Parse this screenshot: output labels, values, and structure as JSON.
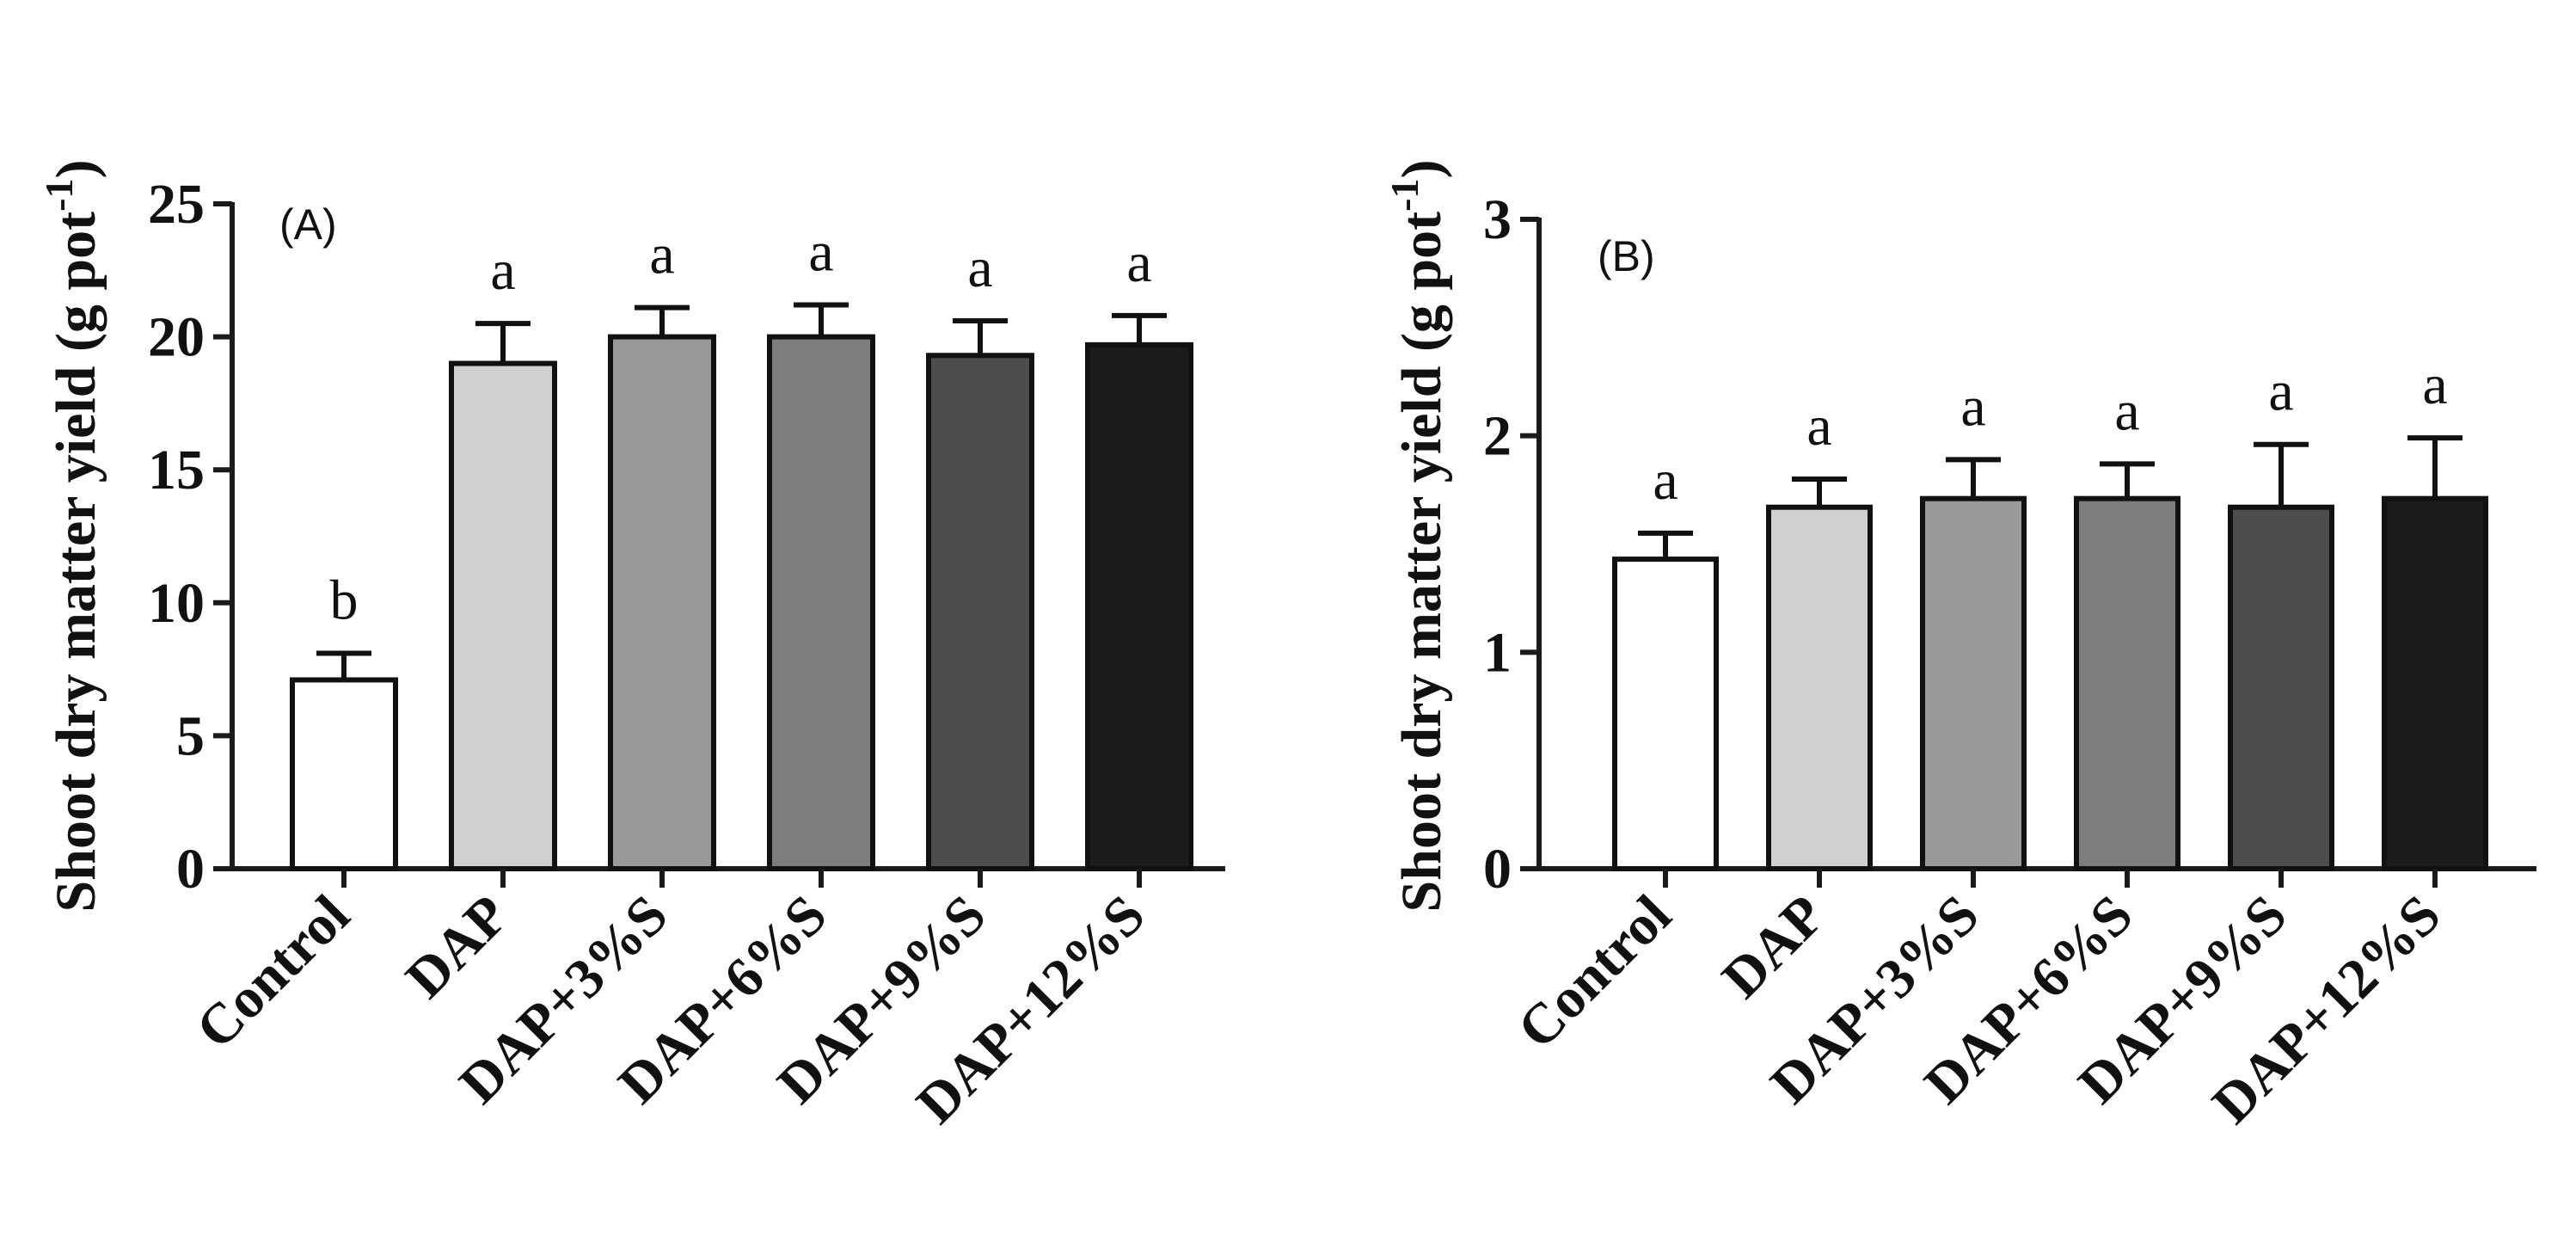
{
  "chart_data": [
    {
      "type": "bar",
      "panel_label": "(A)",
      "ylabel": "Shoot dry matter yield (g pot",
      "ylabel_sup": "-1",
      "ylabel_close": ")",
      "xlabel": "",
      "ylim": [
        0,
        25
      ],
      "yticks": [
        0,
        5,
        10,
        15,
        20,
        25
      ],
      "categories": [
        "Control",
        "DAP",
        "DAP+3%S",
        "DAP+6%S",
        "DAP+9%S",
        "DAP+12%S"
      ],
      "values": [
        7.1,
        19.0,
        20.0,
        20.0,
        19.3,
        19.7
      ],
      "errors": [
        1.0,
        1.5,
        1.1,
        1.2,
        1.3,
        1.1
      ],
      "significance": [
        "b",
        "a",
        "a",
        "a",
        "a",
        "a"
      ],
      "colors": [
        "#ffffff",
        "#d0d0d0",
        "#999999",
        "#7d7d7d",
        "#4d4d4d",
        "#1c1c1c"
      ]
    },
    {
      "type": "bar",
      "panel_label": "(B)",
      "ylabel": "Shoot dry matter yield (g pot",
      "ylabel_sup": "-1",
      "ylabel_close": ")",
      "xlabel": "",
      "ylim": [
        0,
        3
      ],
      "yticks": [
        0,
        1,
        2,
        3
      ],
      "categories": [
        "Control",
        "DAP",
        "DAP+3%S",
        "DAP+6%S",
        "DAP+9%S",
        "DAP+12%S"
      ],
      "values": [
        1.43,
        1.67,
        1.71,
        1.71,
        1.67,
        1.71
      ],
      "errors": [
        0.12,
        0.13,
        0.18,
        0.16,
        0.29,
        0.28
      ],
      "significance": [
        "a",
        "a",
        "a",
        "a",
        "a",
        "a"
      ],
      "colors": [
        "#ffffff",
        "#d0d0d0",
        "#999999",
        "#7d7d7d",
        "#4d4d4d",
        "#1c1c1c"
      ]
    }
  ]
}
